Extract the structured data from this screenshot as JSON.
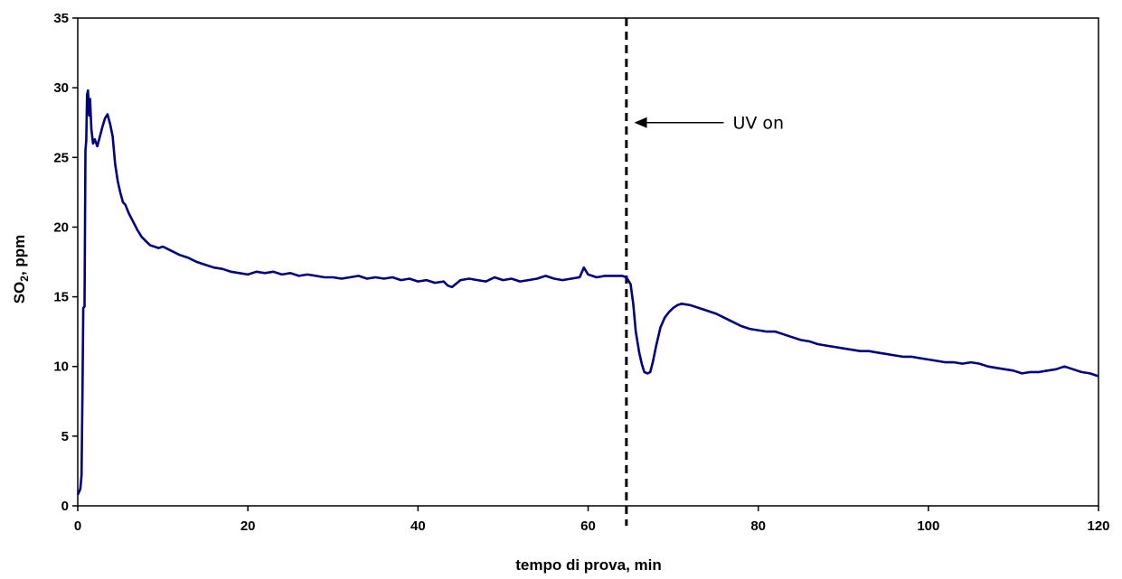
{
  "chart_data": {
    "type": "line",
    "title": "",
    "xlabel": "tempo di prova, min",
    "ylabel_parts": {
      "main": "SO",
      "sub": "2",
      "rest": ", ppm"
    },
    "xlim": [
      0,
      120
    ],
    "ylim": [
      0,
      35
    ],
    "x_ticks": [
      0,
      20,
      40,
      60,
      80,
      100,
      120
    ],
    "y_ticks": [
      0,
      5,
      10,
      15,
      20,
      25,
      30,
      35
    ],
    "grid": false,
    "legend": "none",
    "series": [
      {
        "color": "#000080",
        "points": [
          [
            0,
            0.8
          ],
          [
            0.3,
            1.2
          ],
          [
            0.45,
            2.2
          ],
          [
            0.55,
            8.0
          ],
          [
            0.65,
            14.2
          ],
          [
            0.8,
            14.3
          ],
          [
            0.9,
            25.5
          ],
          [
            1.0,
            26.2
          ],
          [
            1.1,
            29.5
          ],
          [
            1.2,
            29.8
          ],
          [
            1.35,
            28.0
          ],
          [
            1.45,
            29.2
          ],
          [
            1.6,
            27.0
          ],
          [
            1.8,
            26.0
          ],
          [
            2.0,
            26.3
          ],
          [
            2.3,
            25.8
          ],
          [
            2.6,
            26.5
          ],
          [
            2.9,
            27.2
          ],
          [
            3.2,
            27.8
          ],
          [
            3.5,
            28.1
          ],
          [
            3.8,
            27.4
          ],
          [
            4.1,
            26.5
          ],
          [
            4.4,
            24.5
          ],
          [
            4.7,
            23.3
          ],
          [
            5.0,
            22.5
          ],
          [
            5.3,
            21.8
          ],
          [
            5.6,
            21.6
          ],
          [
            6.0,
            21.0
          ],
          [
            6.5,
            20.4
          ],
          [
            7.0,
            19.8
          ],
          [
            7.5,
            19.3
          ],
          [
            8.0,
            19.0
          ],
          [
            8.5,
            18.7
          ],
          [
            9.0,
            18.6
          ],
          [
            9.5,
            18.5
          ],
          [
            10.0,
            18.6
          ],
          [
            11.0,
            18.3
          ],
          [
            12.0,
            18.0
          ],
          [
            13.0,
            17.8
          ],
          [
            14.0,
            17.5
          ],
          [
            15.0,
            17.3
          ],
          [
            16.0,
            17.1
          ],
          [
            17.0,
            17.0
          ],
          [
            18.0,
            16.8
          ],
          [
            19.0,
            16.7
          ],
          [
            20.0,
            16.6
          ],
          [
            21.0,
            16.8
          ],
          [
            22.0,
            16.7
          ],
          [
            23.0,
            16.8
          ],
          [
            24.0,
            16.6
          ],
          [
            25.0,
            16.7
          ],
          [
            26.0,
            16.5
          ],
          [
            27.0,
            16.6
          ],
          [
            28.0,
            16.5
          ],
          [
            29.0,
            16.4
          ],
          [
            30.0,
            16.4
          ],
          [
            31.0,
            16.3
          ],
          [
            32.0,
            16.4
          ],
          [
            33.0,
            16.5
          ],
          [
            34.0,
            16.3
          ],
          [
            35.0,
            16.4
          ],
          [
            36.0,
            16.3
          ],
          [
            37.0,
            16.4
          ],
          [
            38.0,
            16.2
          ],
          [
            39.0,
            16.3
          ],
          [
            40.0,
            16.1
          ],
          [
            41.0,
            16.2
          ],
          [
            42.0,
            16.0
          ],
          [
            43.0,
            16.1
          ],
          [
            43.5,
            15.8
          ],
          [
            44.0,
            15.7
          ],
          [
            45.0,
            16.2
          ],
          [
            46.0,
            16.3
          ],
          [
            47.0,
            16.2
          ],
          [
            48.0,
            16.1
          ],
          [
            49.0,
            16.4
          ],
          [
            50.0,
            16.2
          ],
          [
            51.0,
            16.3
          ],
          [
            52.0,
            16.1
          ],
          [
            53.0,
            16.2
          ],
          [
            54.0,
            16.3
          ],
          [
            55.0,
            16.5
          ],
          [
            56.0,
            16.3
          ],
          [
            57.0,
            16.2
          ],
          [
            58.0,
            16.3
          ],
          [
            59.0,
            16.4
          ],
          [
            59.5,
            17.1
          ],
          [
            60.0,
            16.6
          ],
          [
            61.0,
            16.4
          ],
          [
            62.0,
            16.5
          ],
          [
            63.0,
            16.5
          ],
          [
            64.0,
            16.5
          ],
          [
            64.5,
            16.4
          ],
          [
            65.0,
            15.9
          ],
          [
            65.3,
            14.5
          ],
          [
            65.6,
            12.5
          ],
          [
            66.0,
            11.0
          ],
          [
            66.3,
            10.2
          ],
          [
            66.6,
            9.6
          ],
          [
            67.0,
            9.5
          ],
          [
            67.3,
            9.6
          ],
          [
            67.6,
            10.3
          ],
          [
            68.0,
            11.5
          ],
          [
            68.5,
            12.8
          ],
          [
            69.0,
            13.5
          ],
          [
            69.5,
            13.9
          ],
          [
            70.0,
            14.2
          ],
          [
            70.5,
            14.4
          ],
          [
            71.0,
            14.5
          ],
          [
            72.0,
            14.4
          ],
          [
            73.0,
            14.2
          ],
          [
            74.0,
            14.0
          ],
          [
            75.0,
            13.8
          ],
          [
            76.0,
            13.5
          ],
          [
            77.0,
            13.2
          ],
          [
            78.0,
            12.9
          ],
          [
            79.0,
            12.7
          ],
          [
            80.0,
            12.6
          ],
          [
            81.0,
            12.5
          ],
          [
            82.0,
            12.5
          ],
          [
            83.0,
            12.3
          ],
          [
            84.0,
            12.1
          ],
          [
            85.0,
            11.9
          ],
          [
            86.0,
            11.8
          ],
          [
            87.0,
            11.6
          ],
          [
            88.0,
            11.5
          ],
          [
            89.0,
            11.4
          ],
          [
            90.0,
            11.3
          ],
          [
            91.0,
            11.2
          ],
          [
            92.0,
            11.1
          ],
          [
            93.0,
            11.1
          ],
          [
            94.0,
            11.0
          ],
          [
            95.0,
            10.9
          ],
          [
            96.0,
            10.8
          ],
          [
            97.0,
            10.7
          ],
          [
            98.0,
            10.7
          ],
          [
            99.0,
            10.6
          ],
          [
            100.0,
            10.5
          ],
          [
            101.0,
            10.4
          ],
          [
            102.0,
            10.3
          ],
          [
            103.0,
            10.3
          ],
          [
            104.0,
            10.2
          ],
          [
            105.0,
            10.3
          ],
          [
            106.0,
            10.2
          ],
          [
            107.0,
            10.0
          ],
          [
            108.0,
            9.9
          ],
          [
            109.0,
            9.8
          ],
          [
            110.0,
            9.7
          ],
          [
            111.0,
            9.5
          ],
          [
            112.0,
            9.6
          ],
          [
            113.0,
            9.6
          ],
          [
            114.0,
            9.7
          ],
          [
            115.0,
            9.8
          ],
          [
            116.0,
            10.0
          ],
          [
            117.0,
            9.8
          ],
          [
            118.0,
            9.6
          ],
          [
            119.0,
            9.5
          ],
          [
            120.0,
            9.3
          ]
        ]
      }
    ],
    "markers": [
      {
        "type": "vertical-dashed-line",
        "x": 64.5,
        "color": "#000000"
      }
    ],
    "annotations": [
      {
        "text": "UV on",
        "x": 77,
        "y": 27.5,
        "arrow_to": [
          65.0,
          27.5
        ]
      }
    ]
  }
}
